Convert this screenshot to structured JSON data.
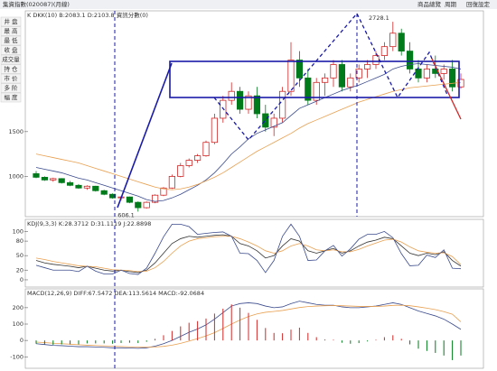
{
  "header": {
    "title": "集資指數(020087)(月線)",
    "menu": [
      "商品總覽",
      "周期",
      "回復設定"
    ]
  },
  "toolbar": [
    "井 盘",
    "最 高",
    "最 低",
    "收 盘",
    "成交量",
    "持 仓",
    "市 价",
    "多 阶",
    "幅 度"
  ],
  "chart_data": [
    {
      "type": "candlestick",
      "title": "K  DKK(10)  B:2083.1  D:2103.8  資訊分數(0)",
      "categories": [
        null,
        null,
        null,
        null,
        null,
        null,
        null,
        null,
        null,
        null,
        null,
        null,
        null,
        null,
        null,
        null,
        null,
        null,
        null,
        null,
        null,
        null,
        null,
        null,
        null,
        null,
        null,
        null,
        null,
        null,
        null,
        null,
        null,
        null,
        null,
        null,
        null,
        null,
        null,
        null,
        null,
        null,
        null,
        null,
        null,
        null,
        null,
        null,
        null,
        null,
        null
      ],
      "open": [
        1030,
        990,
        960,
        975,
        930,
        900,
        870,
        890,
        840,
        800,
        760,
        770,
        710,
        650,
        710,
        790,
        870,
        1000,
        1120,
        1180,
        1230,
        1380,
        1650,
        1850,
        1950,
        1750,
        1900,
        1700,
        1550,
        1650,
        1950,
        2300,
        2100,
        1850,
        2050,
        2100,
        2250,
        2000,
        2100,
        2200,
        2250,
        2350,
        2450,
        2600,
        2400,
        2200,
        2100,
        2200,
        2150,
        2200,
        2000
      ],
      "high": [
        1060,
        1000,
        985,
        980,
        950,
        915,
        900,
        895,
        850,
        810,
        780,
        775,
        720,
        720,
        800,
        880,
        1020,
        1150,
        1200,
        1250,
        1400,
        1700,
        1900,
        2050,
        2000,
        1950,
        2000,
        1800,
        1700,
        2000,
        2500,
        2400,
        2200,
        2100,
        2150,
        2300,
        2300,
        2150,
        2250,
        2300,
        2400,
        2500,
        2728.1,
        2650,
        2500,
        2300,
        2250,
        2350,
        2250,
        2300,
        2150
      ],
      "low": [
        980,
        950,
        940,
        920,
        890,
        860,
        850,
        830,
        790,
        750,
        730,
        700,
        606.1,
        640,
        700,
        780,
        860,
        990,
        1100,
        1150,
        1220,
        1360,
        1600,
        1800,
        1700,
        1700,
        1650,
        1500,
        1450,
        1600,
        1900,
        2000,
        1800,
        1800,
        1900,
        2000,
        1950,
        1950,
        2050,
        2100,
        2200,
        2300,
        2400,
        2350,
        2150,
        2050,
        2050,
        2100,
        2080,
        1950,
        1980
      ],
      "close": [
        990,
        960,
        975,
        930,
        900,
        870,
        890,
        840,
        800,
        760,
        770,
        710,
        650,
        710,
        790,
        870,
        1000,
        1120,
        1180,
        1230,
        1380,
        1650,
        1850,
        1950,
        1750,
        1900,
        1700,
        1550,
        1650,
        1950,
        2300,
        2100,
        1850,
        2050,
        2100,
        2250,
        2000,
        2100,
        2200,
        2250,
        2350,
        2450,
        2600,
        2400,
        2200,
        2100,
        2200,
        2150,
        2200,
        2000,
        2083.1
      ],
      "up_color": "#d02828",
      "down_color": "#007a1a",
      "series": [
        {
          "name": "MA1",
          "color": "#3a4a8c",
          "values": [
            1100,
            1080,
            1060,
            1040,
            1010,
            980,
            960,
            930,
            900,
            870,
            840,
            810,
            780,
            740,
            720,
            730,
            760,
            800,
            850,
            900,
            960,
            1040,
            1140,
            1250,
            1330,
            1420,
            1480,
            1520,
            1560,
            1600,
            1680,
            1760,
            1800,
            1840,
            1880,
            1920,
            1960,
            1990,
            2020,
            2060,
            2100,
            2140,
            2200,
            2230,
            2250,
            2260,
            2250,
            2240,
            2230,
            2220,
            2200
          ]
        },
        {
          "name": "MA2",
          "color": "#e8a050",
          "values": [
            1250,
            1230,
            1210,
            1190,
            1170,
            1150,
            1120,
            1090,
            1060,
            1030,
            1000,
            970,
            940,
            910,
            880,
            860,
            850,
            860,
            880,
            910,
            950,
            990,
            1040,
            1100,
            1160,
            1220,
            1280,
            1330,
            1380,
            1430,
            1480,
            1540,
            1590,
            1630,
            1670,
            1710,
            1750,
            1790,
            1830,
            1860,
            1890,
            1920,
            1950,
            1970,
            1990,
            2000,
            2010,
            2020,
            2030,
            2040,
            2050
          ]
        }
      ],
      "ylim": [
        550,
        2850
      ],
      "yticks": [
        1000,
        1500
      ],
      "annotations": [
        {
          "text": "2728.1",
          "index": 42,
          "value": 2728.1
        },
        {
          "text": "606.1",
          "index": 12,
          "value": 606.1
        }
      ]
    },
    {
      "type": "line",
      "title": "KDJ(9,3,3)  K:28.3712  D:31.1119  J:22.8898",
      "series": [
        {
          "name": "K",
          "color": "#333333",
          "values": [
            40,
            35,
            32,
            30,
            28,
            25,
            28,
            24,
            20,
            18,
            20,
            17,
            15,
            20,
            35,
            55,
            75,
            85,
            90,
            88,
            90,
            92,
            93,
            90,
            75,
            70,
            60,
            45,
            50,
            70,
            85,
            80,
            60,
            55,
            60,
            65,
            55,
            60,
            70,
            78,
            82,
            88,
            85,
            70,
            55,
            50,
            55,
            52,
            58,
            40,
            28.3712
          ]
        },
        {
          "name": "D",
          "color": "#e8a050",
          "values": [
            45,
            42,
            38,
            35,
            32,
            29,
            28,
            27,
            24,
            21,
            20,
            19,
            17,
            18,
            25,
            38,
            55,
            70,
            80,
            85,
            87,
            89,
            90,
            90,
            85,
            78,
            70,
            60,
            55,
            60,
            70,
            75,
            70,
            62,
            60,
            62,
            58,
            58,
            63,
            70,
            76,
            82,
            84,
            78,
            68,
            60,
            57,
            55,
            56,
            48,
            31.1119
          ]
        },
        {
          "name": "J",
          "color": "#3a4a8c",
          "values": [
            30,
            25,
            20,
            20,
            20,
            17,
            28,
            18,
            12,
            12,
            20,
            13,
            11,
            24,
            55,
            89,
            115,
            115,
            110,
            94,
            96,
            98,
            99,
            90,
            55,
            54,
            40,
            15,
            40,
            90,
            115,
            90,
            40,
            41,
            60,
            71,
            49,
            64,
            84,
            94,
            94,
            100,
            87,
            54,
            29,
            30,
            51,
            46,
            62,
            24,
            22.8898
          ]
        }
      ],
      "ylim": [
        -15,
        125
      ],
      "yticks": [
        0,
        20,
        50,
        80,
        100
      ]
    },
    {
      "type": "combo",
      "title": "MACD(12,26,9)  DIFF:67.5472  DEA:113.5614  MACD:-92.0684",
      "series": [
        {
          "name": "DIFF",
          "kind": "line",
          "color": "#3a4a8c",
          "values": [
            -20,
            -25,
            -30,
            -32,
            -35,
            -38,
            -38,
            -40,
            -42,
            -45,
            -45,
            -46,
            -48,
            -45,
            -35,
            -20,
            0,
            25,
            50,
            70,
            95,
            130,
            170,
            210,
            225,
            230,
            225,
            210,
            200,
            205,
            225,
            240,
            230,
            220,
            215,
            215,
            205,
            200,
            200,
            205,
            210,
            220,
            230,
            220,
            200,
            180,
            165,
            150,
            130,
            100,
            67.5472
          ]
        },
        {
          "name": "DEA",
          "kind": "line",
          "color": "#e8a050",
          "values": [
            -10,
            -13,
            -17,
            -20,
            -23,
            -26,
            -29,
            -31,
            -33,
            -35,
            -37,
            -39,
            -40,
            -41,
            -40,
            -36,
            -29,
            -18,
            -4,
            11,
            28,
            48,
            73,
            100,
            125,
            146,
            162,
            172,
            177,
            183,
            192,
            201,
            207,
            210,
            212,
            213,
            212,
            210,
            208,
            208,
            208,
            210,
            214,
            215,
            212,
            205,
            197,
            188,
            176,
            160,
            113.5614
          ]
        },
        {
          "name": "MACD",
          "kind": "bar",
          "color": "#d02828",
          "neg_color": "#007a1a",
          "values": [
            -20,
            -24,
            -26,
            -24,
            -24,
            -24,
            -18,
            -18,
            -18,
            -20,
            -16,
            -14,
            -16,
            -8,
            10,
            32,
            58,
            86,
            108,
            118,
            134,
            164,
            194,
            220,
            200,
            168,
            126,
            76,
            46,
            44,
            66,
            78,
            46,
            20,
            6,
            4,
            -14,
            -20,
            -16,
            -6,
            4,
            20,
            32,
            10,
            -24,
            -50,
            -64,
            -76,
            -92,
            -120,
            -92.0684
          ]
        }
      ],
      "ylim": [
        -170,
        315
      ],
      "yticks": [
        -100,
        0,
        100,
        200
      ]
    }
  ]
}
